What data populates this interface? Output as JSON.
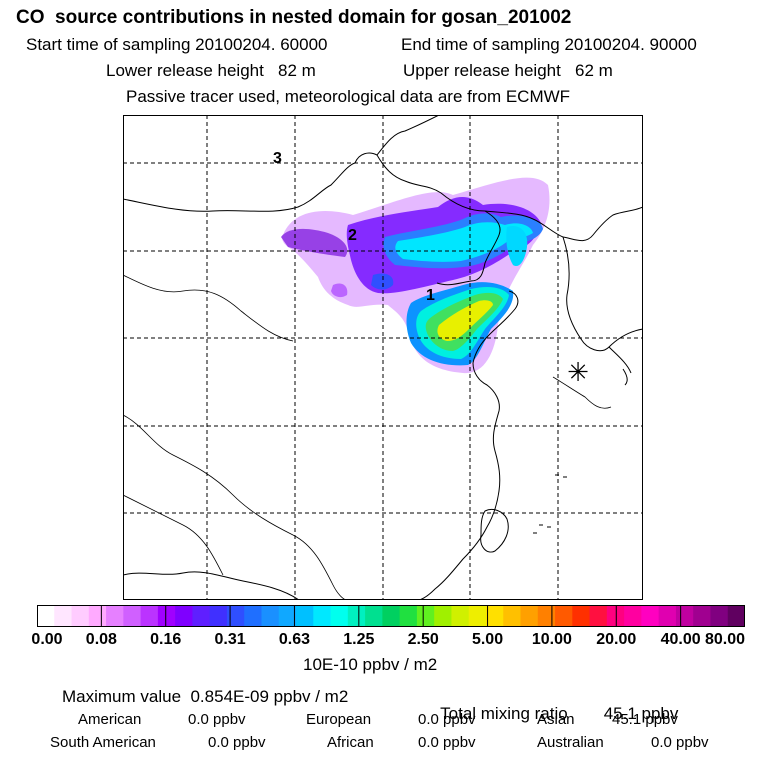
{
  "header": {
    "title": "CO  source contributions in nested domain for gosan_201002",
    "start_time": "Start time of sampling 20100204. 60000",
    "end_time": "End time of sampling 20100204. 90000",
    "lower_release": "Lower release height   82 m",
    "upper_release": "Upper release height   62 m",
    "tracer_note": "Passive tracer used, meteorological data are from ECMWF"
  },
  "chart_data": {
    "type": "heatmap",
    "title": "CO  source contributions in nested domain for gosan_201002",
    "units": "10E-10 ppbv / m2",
    "colorbar_ticks": [
      "0.00",
      "0.08",
      "0.16",
      "0.31",
      "0.63",
      "1.25",
      "2.50",
      "5.00",
      "10.00",
      "20.00",
      "40.00",
      "80.00"
    ],
    "colorbar_colors": [
      "#ffffff",
      "#ffe6ff",
      "#ffccff",
      "#ffaaff",
      "#e680ff",
      "#d060ff",
      "#bb33ff",
      "#a000ff",
      "#7f00ff",
      "#5f1fff",
      "#4030ff",
      "#2f4fff",
      "#1f6fff",
      "#1a90ff",
      "#10a8ff",
      "#00c0ff",
      "#00e8ff",
      "#00ffee",
      "#00f0c0",
      "#00e090",
      "#00d060",
      "#20e040",
      "#60f020",
      "#a0f000",
      "#d0f000",
      "#eeee00",
      "#ffe000",
      "#ffc000",
      "#ffa000",
      "#ff8000",
      "#ff5a00",
      "#ff3000",
      "#ff1040",
      "#ff0080",
      "#ff00a0",
      "#ff00c0",
      "#e000b0",
      "#c000a0",
      "#a00090",
      "#800080",
      "#600060"
    ],
    "markers": [
      "1",
      "2",
      "3"
    ],
    "receptor_symbol": "✳",
    "maximum_value": "0.854E-09 ppbv / m2",
    "total_mixing_ratio": "45.1 ppbv"
  },
  "footer": {
    "max_label": "Maximum value  0.854E-09 ppbv / m2",
    "total_label": "Total mixing ratio",
    "total_value": "45.1 ppbv",
    "regions": [
      {
        "name": "American",
        "value": "0.0 ppbv"
      },
      {
        "name": "European",
        "value": "0.0 ppbv"
      },
      {
        "name": "Asian",
        "value": "45.1 ppbv"
      },
      {
        "name": "South American",
        "value": "0.0 ppbv"
      },
      {
        "name": "African",
        "value": "0.0 ppbv"
      },
      {
        "name": "Australian",
        "value": "0.0 ppbv"
      }
    ]
  }
}
